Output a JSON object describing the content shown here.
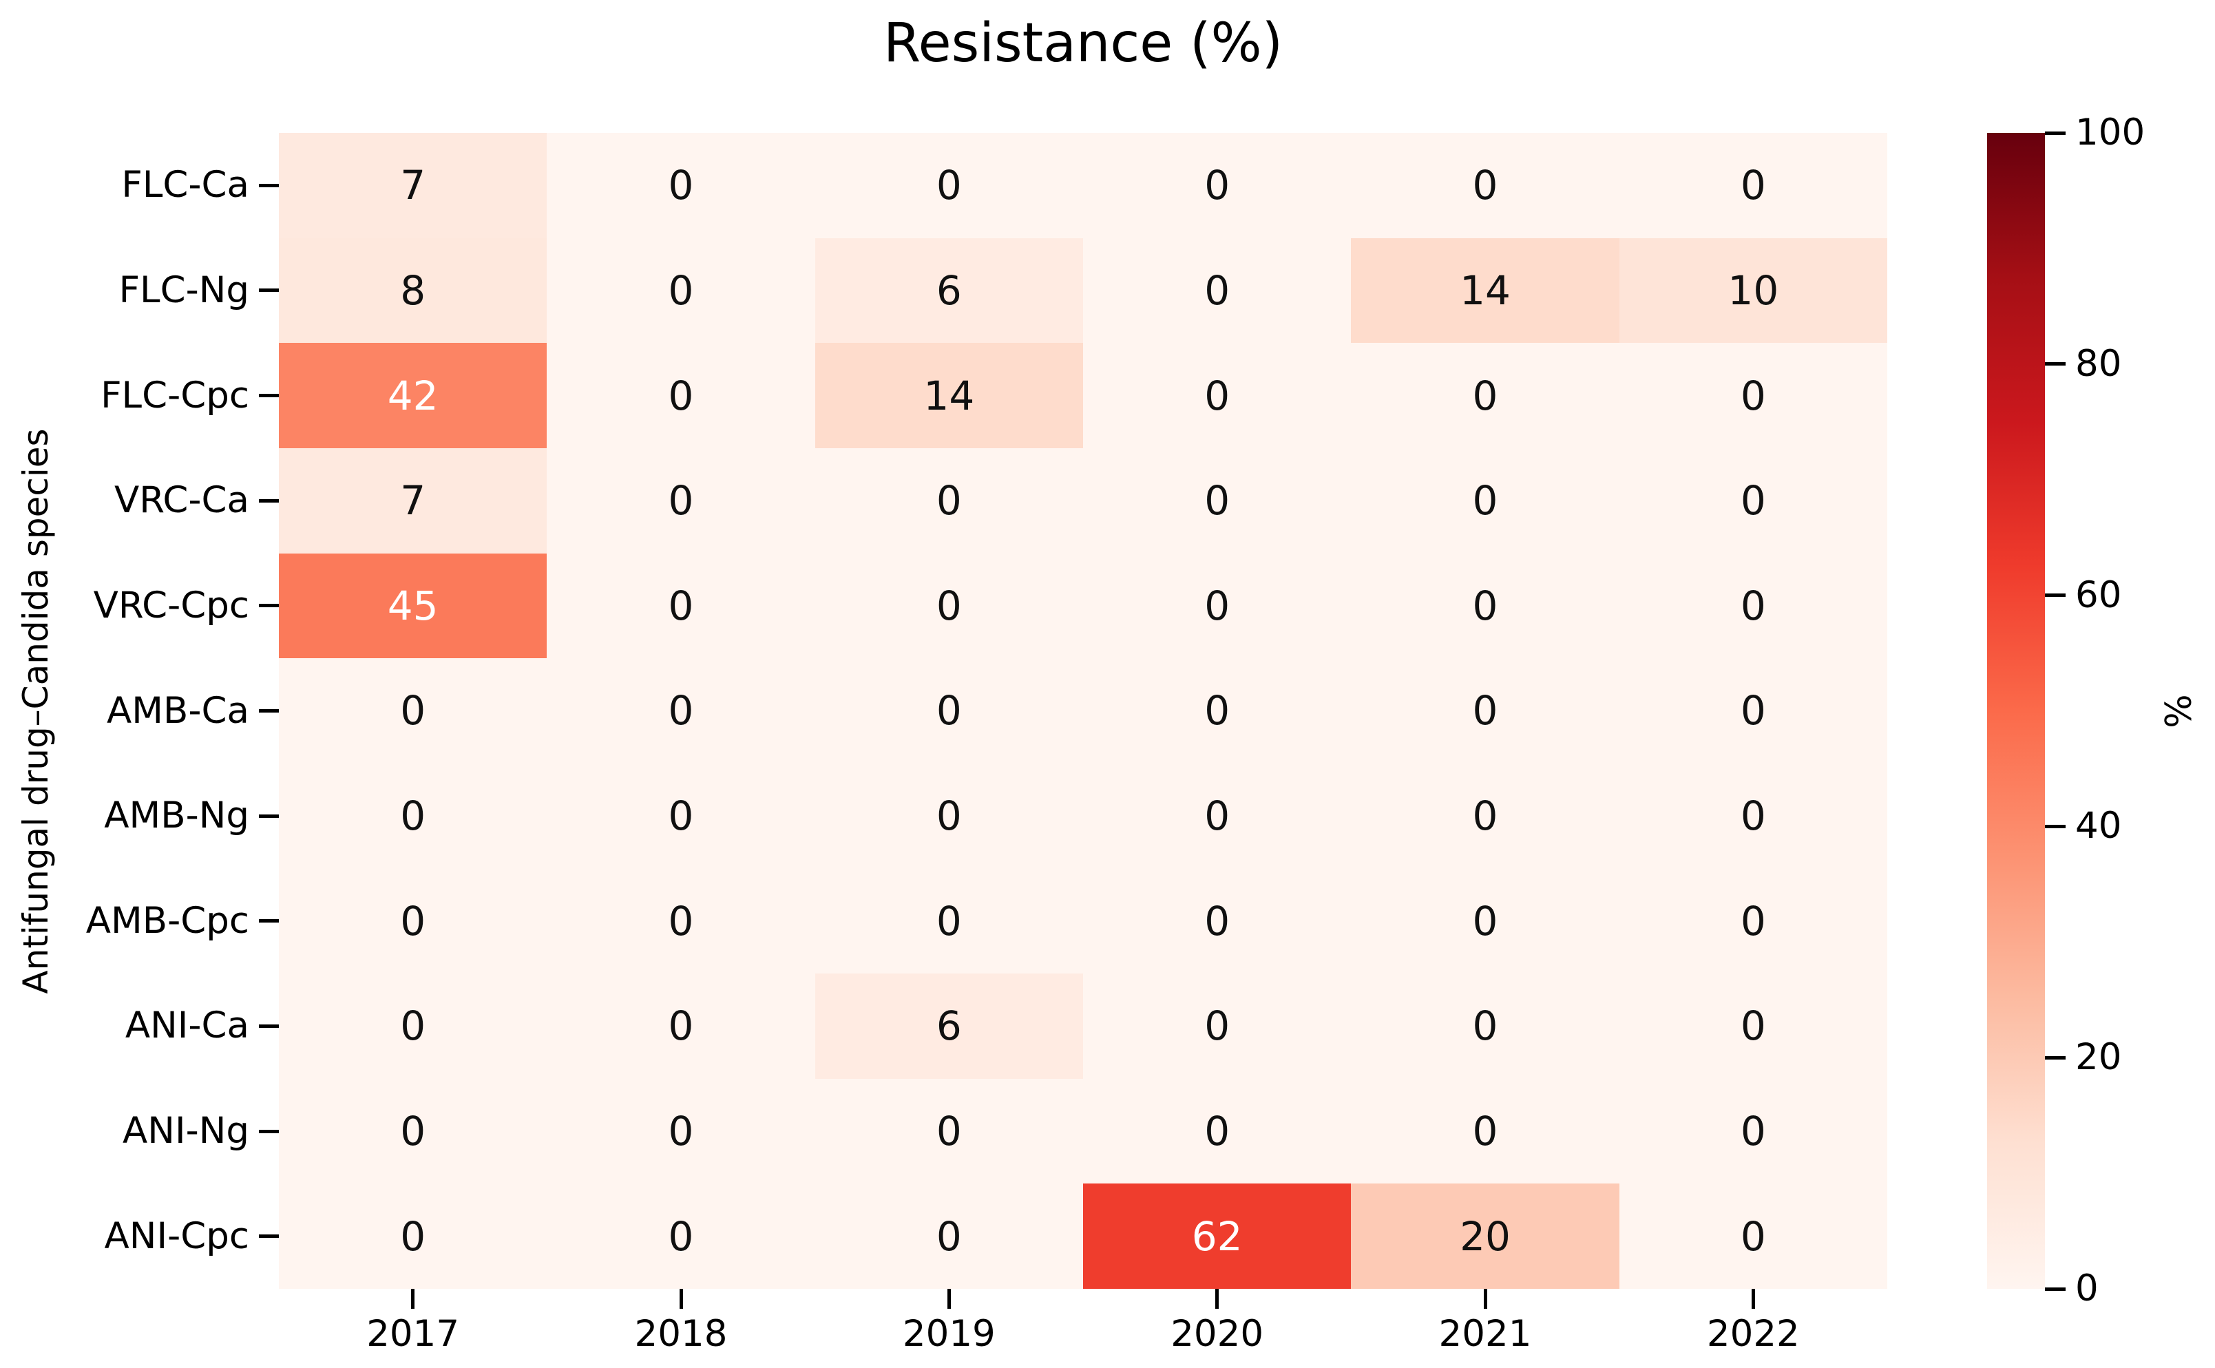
{
  "chart_data": {
    "type": "heatmap",
    "title": "Resistance (%)",
    "xlabel": "",
    "ylabel": "Antifungal drug–Candida species",
    "x_categories": [
      "2017",
      "2018",
      "2019",
      "2020",
      "2021",
      "2022"
    ],
    "y_categories": [
      "FLC-Ca",
      "FLC-Ng",
      "FLC-Cpc",
      "VRC-Ca",
      "VRC-Cpc",
      "AMB-Ca",
      "AMB-Ng",
      "AMB-Cpc",
      "ANI-Ca",
      "ANI-Ng",
      "ANI-Cpc"
    ],
    "values": [
      [
        7,
        0,
        0,
        0,
        0,
        0
      ],
      [
        8,
        0,
        6,
        0,
        14,
        10
      ],
      [
        42,
        0,
        14,
        0,
        0,
        0
      ],
      [
        7,
        0,
        0,
        0,
        0,
        0
      ],
      [
        45,
        0,
        0,
        0,
        0,
        0
      ],
      [
        0,
        0,
        0,
        0,
        0,
        0
      ],
      [
        0,
        0,
        0,
        0,
        0,
        0
      ],
      [
        0,
        0,
        0,
        0,
        0,
        0
      ],
      [
        0,
        0,
        6,
        0,
        0,
        0
      ],
      [
        0,
        0,
        0,
        0,
        0,
        0
      ],
      [
        0,
        0,
        0,
        62,
        20,
        0
      ]
    ],
    "vmin": 0,
    "vmax": 100,
    "grid": false,
    "colorbar": {
      "label": "%",
      "ticks": [
        0,
        20,
        40,
        60,
        80,
        100
      ],
      "position": "right"
    },
    "colormap": {
      "name": "Reds",
      "stops": [
        {
          "pos": 0.0,
          "color": "#fff5f0"
        },
        {
          "pos": 0.125,
          "color": "#fee0d2"
        },
        {
          "pos": 0.25,
          "color": "#fcbba1"
        },
        {
          "pos": 0.375,
          "color": "#fc9272"
        },
        {
          "pos": 0.5,
          "color": "#fb6a4a"
        },
        {
          "pos": 0.625,
          "color": "#ef3b2c"
        },
        {
          "pos": 0.75,
          "color": "#cb181d"
        },
        {
          "pos": 0.875,
          "color": "#a50f15"
        },
        {
          "pos": 1.0,
          "color": "#67000d"
        }
      ]
    },
    "annotation_colors": {
      "dark": "#101010",
      "light": "#ffffff",
      "light_threshold": 40
    }
  }
}
